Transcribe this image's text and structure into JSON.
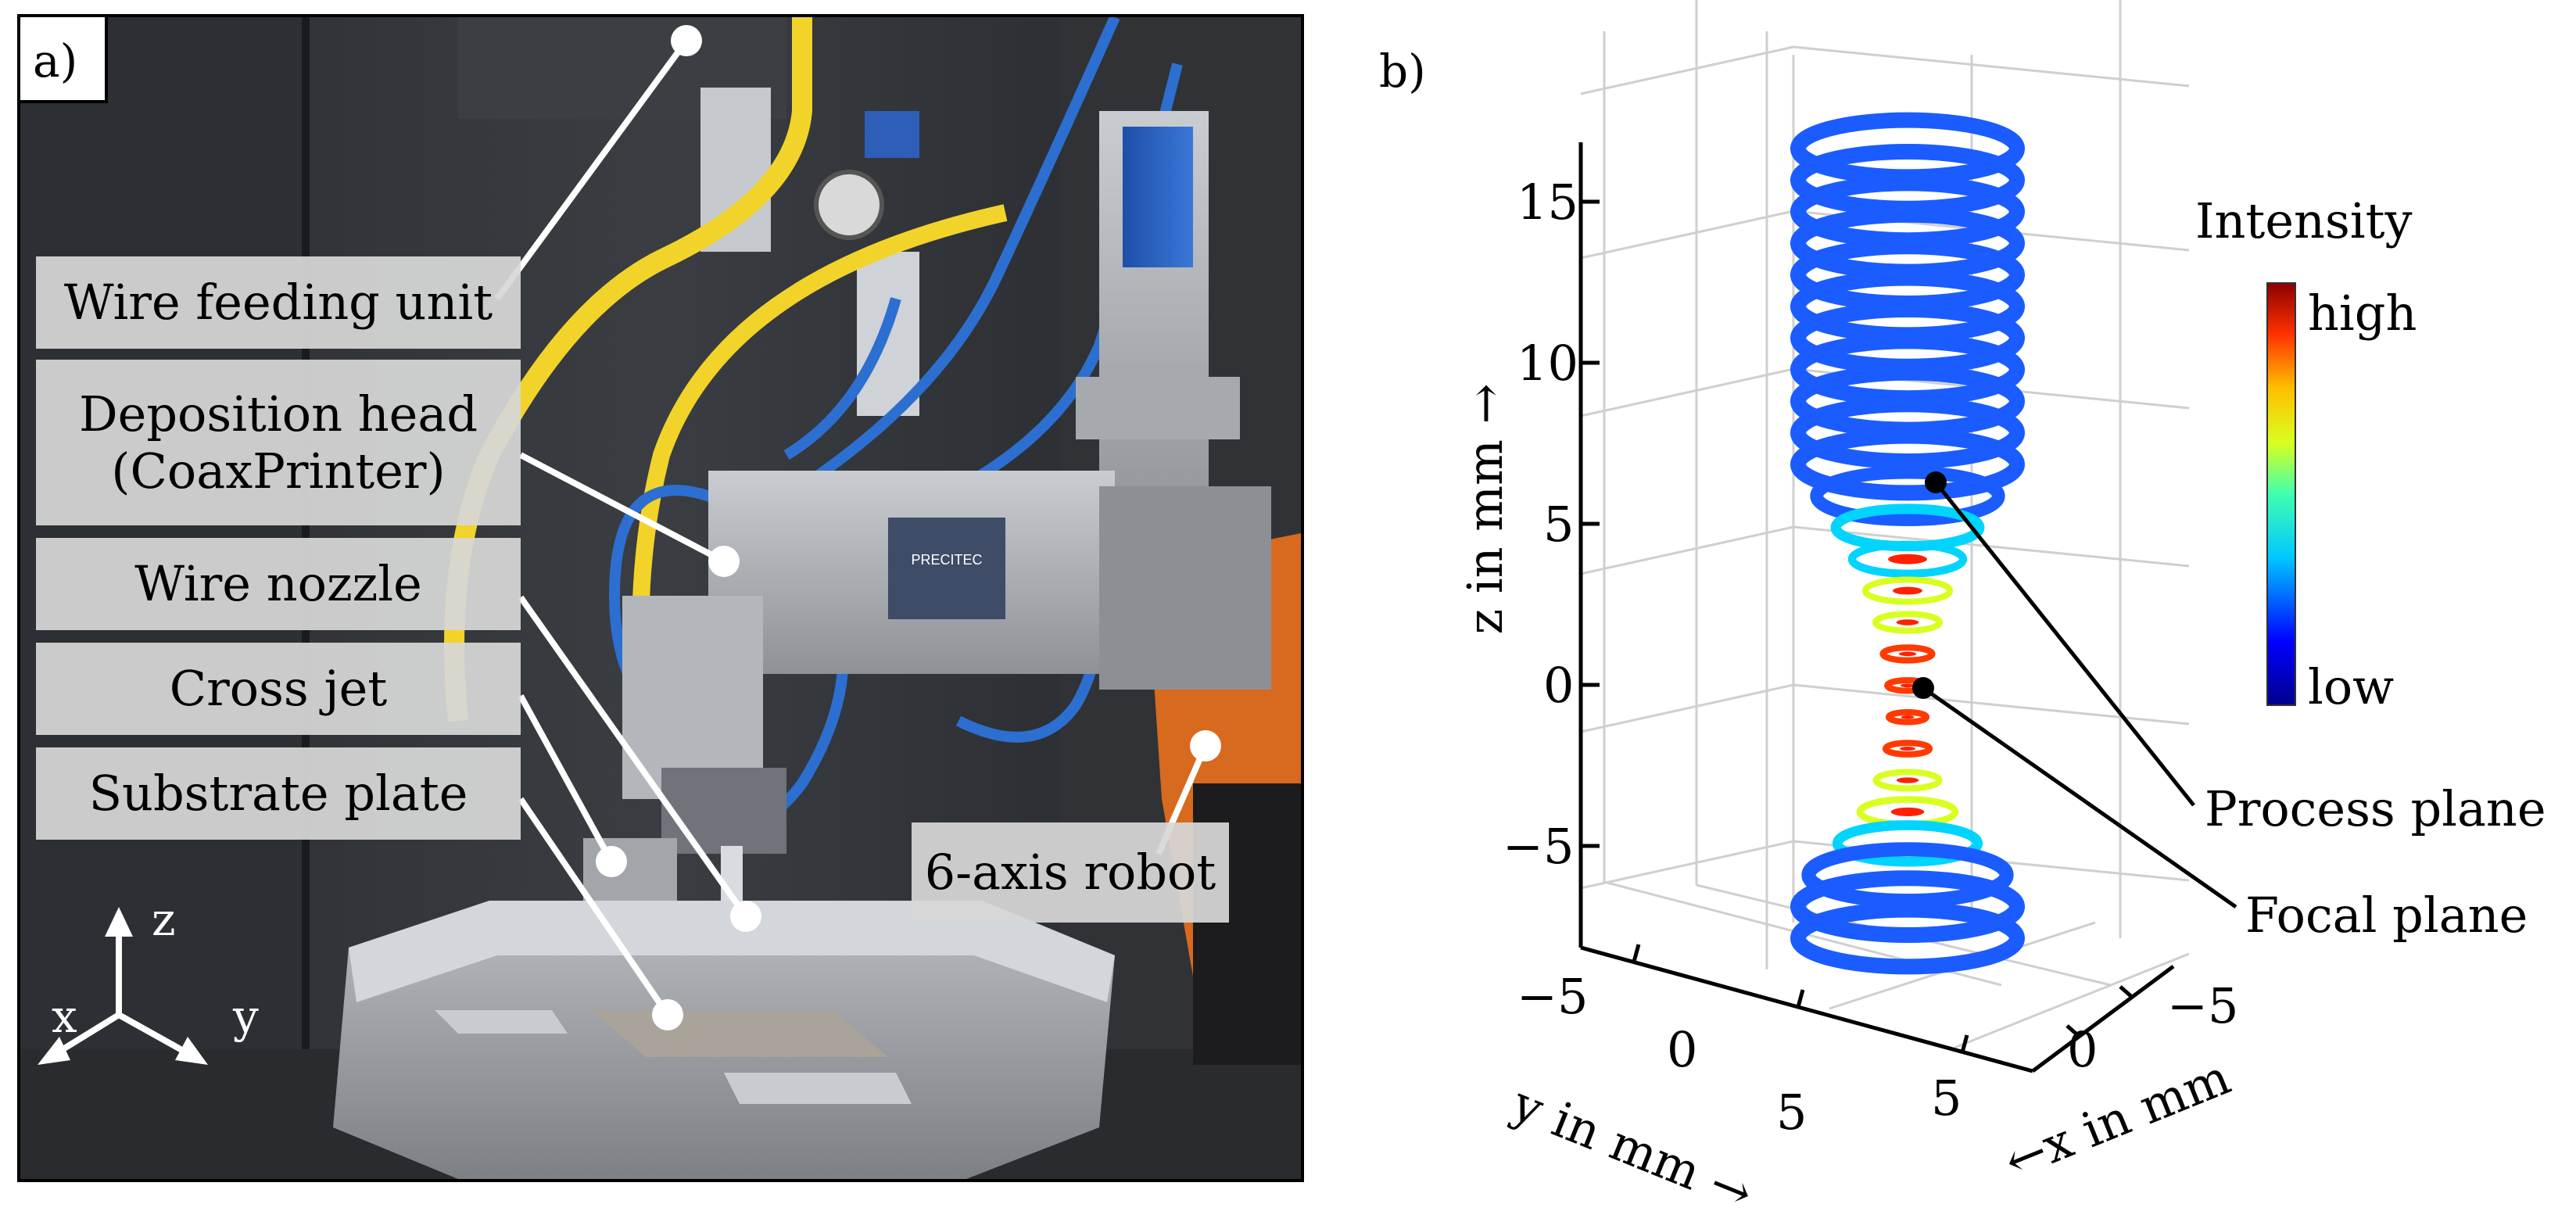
{
  "panel_a": {
    "letter": "a)",
    "labels": {
      "wire_feeding_unit": "Wire feeding unit",
      "deposition_head_line1": "Deposition head",
      "deposition_head_line2": "(CoaxPrinter)",
      "wire_nozzle": "Wire nozzle",
      "cross_jet": "Cross jet",
      "substrate_plate": "Substrate plate",
      "robot": "6-axis robot"
    },
    "axes": {
      "z": "z",
      "x": "x",
      "y": "y"
    },
    "brand_text": "PRECITEC"
  },
  "panel_b": {
    "letter": "b)",
    "colorbar": {
      "title": "Intensity",
      "high": "high",
      "low": "low"
    },
    "annotations": {
      "process_plane": "Process plane",
      "focal_plane": "Focal plane"
    },
    "z_axis": {
      "label": "z in mm →",
      "ticks": [
        "15",
        "10",
        "5",
        "0",
        "−5"
      ]
    },
    "y_axis": {
      "label": "y in mm →",
      "ticks": [
        "−5",
        "0",
        "5"
      ]
    },
    "x_axis": {
      "label": "←x in mm",
      "ticks": [
        "−5",
        "0",
        "5"
      ]
    }
  },
  "colors": {
    "label_bg": "#d7d7d7",
    "cmap_high": "#8b0000",
    "cmap_low": "#00008b",
    "leader_line": "#ffffff"
  }
}
